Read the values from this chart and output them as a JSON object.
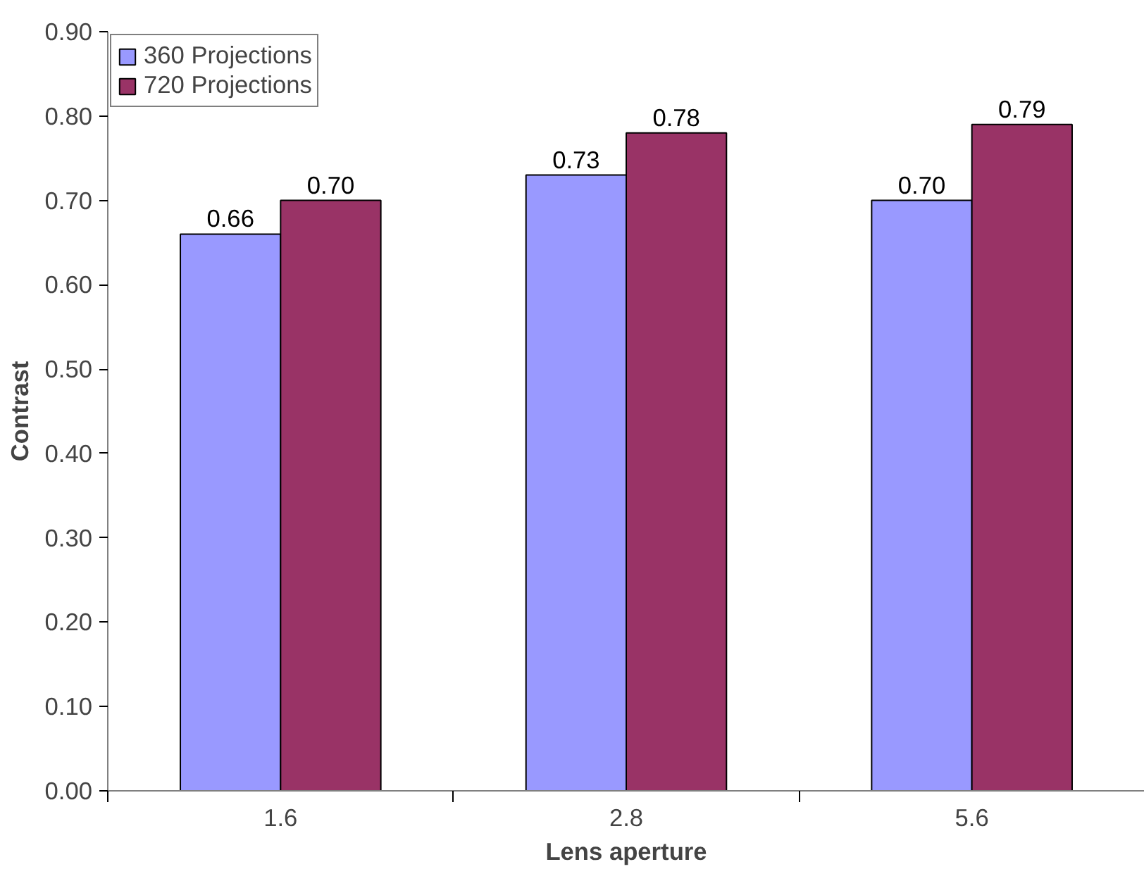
{
  "chart_data": {
    "type": "bar",
    "xlabel": "Lens aperture",
    "ylabel": "Contrast",
    "categories": [
      "1.6",
      "2.8",
      "5.6"
    ],
    "series": [
      {
        "name": "360 Projections",
        "color": "#9999ff",
        "values": [
          0.66,
          0.73,
          0.7
        ],
        "value_labels": [
          "0.66",
          "0.73",
          "0.70"
        ]
      },
      {
        "name": "720 Projections",
        "color": "#993366",
        "values": [
          0.7,
          0.78,
          0.79
        ],
        "value_labels": [
          "0.70",
          "0.78",
          "0.79"
        ]
      }
    ],
    "ylim": [
      0,
      0.9
    ],
    "yticks": [
      {
        "value": 0,
        "label": "0.00"
      },
      {
        "value": 0.1,
        "label": "0.10"
      },
      {
        "value": 0.2,
        "label": "0.20"
      },
      {
        "value": 0.3,
        "label": "0.30"
      },
      {
        "value": 0.4,
        "label": "0.40"
      },
      {
        "value": 0.5,
        "label": "0.50"
      },
      {
        "value": 0.6,
        "label": "0.60"
      },
      {
        "value": 0.7,
        "label": "0.70"
      },
      {
        "value": 0.8,
        "label": "0.80"
      },
      {
        "value": 0.9,
        "label": "0.90"
      }
    ],
    "grid": false,
    "legend": "top left"
  }
}
